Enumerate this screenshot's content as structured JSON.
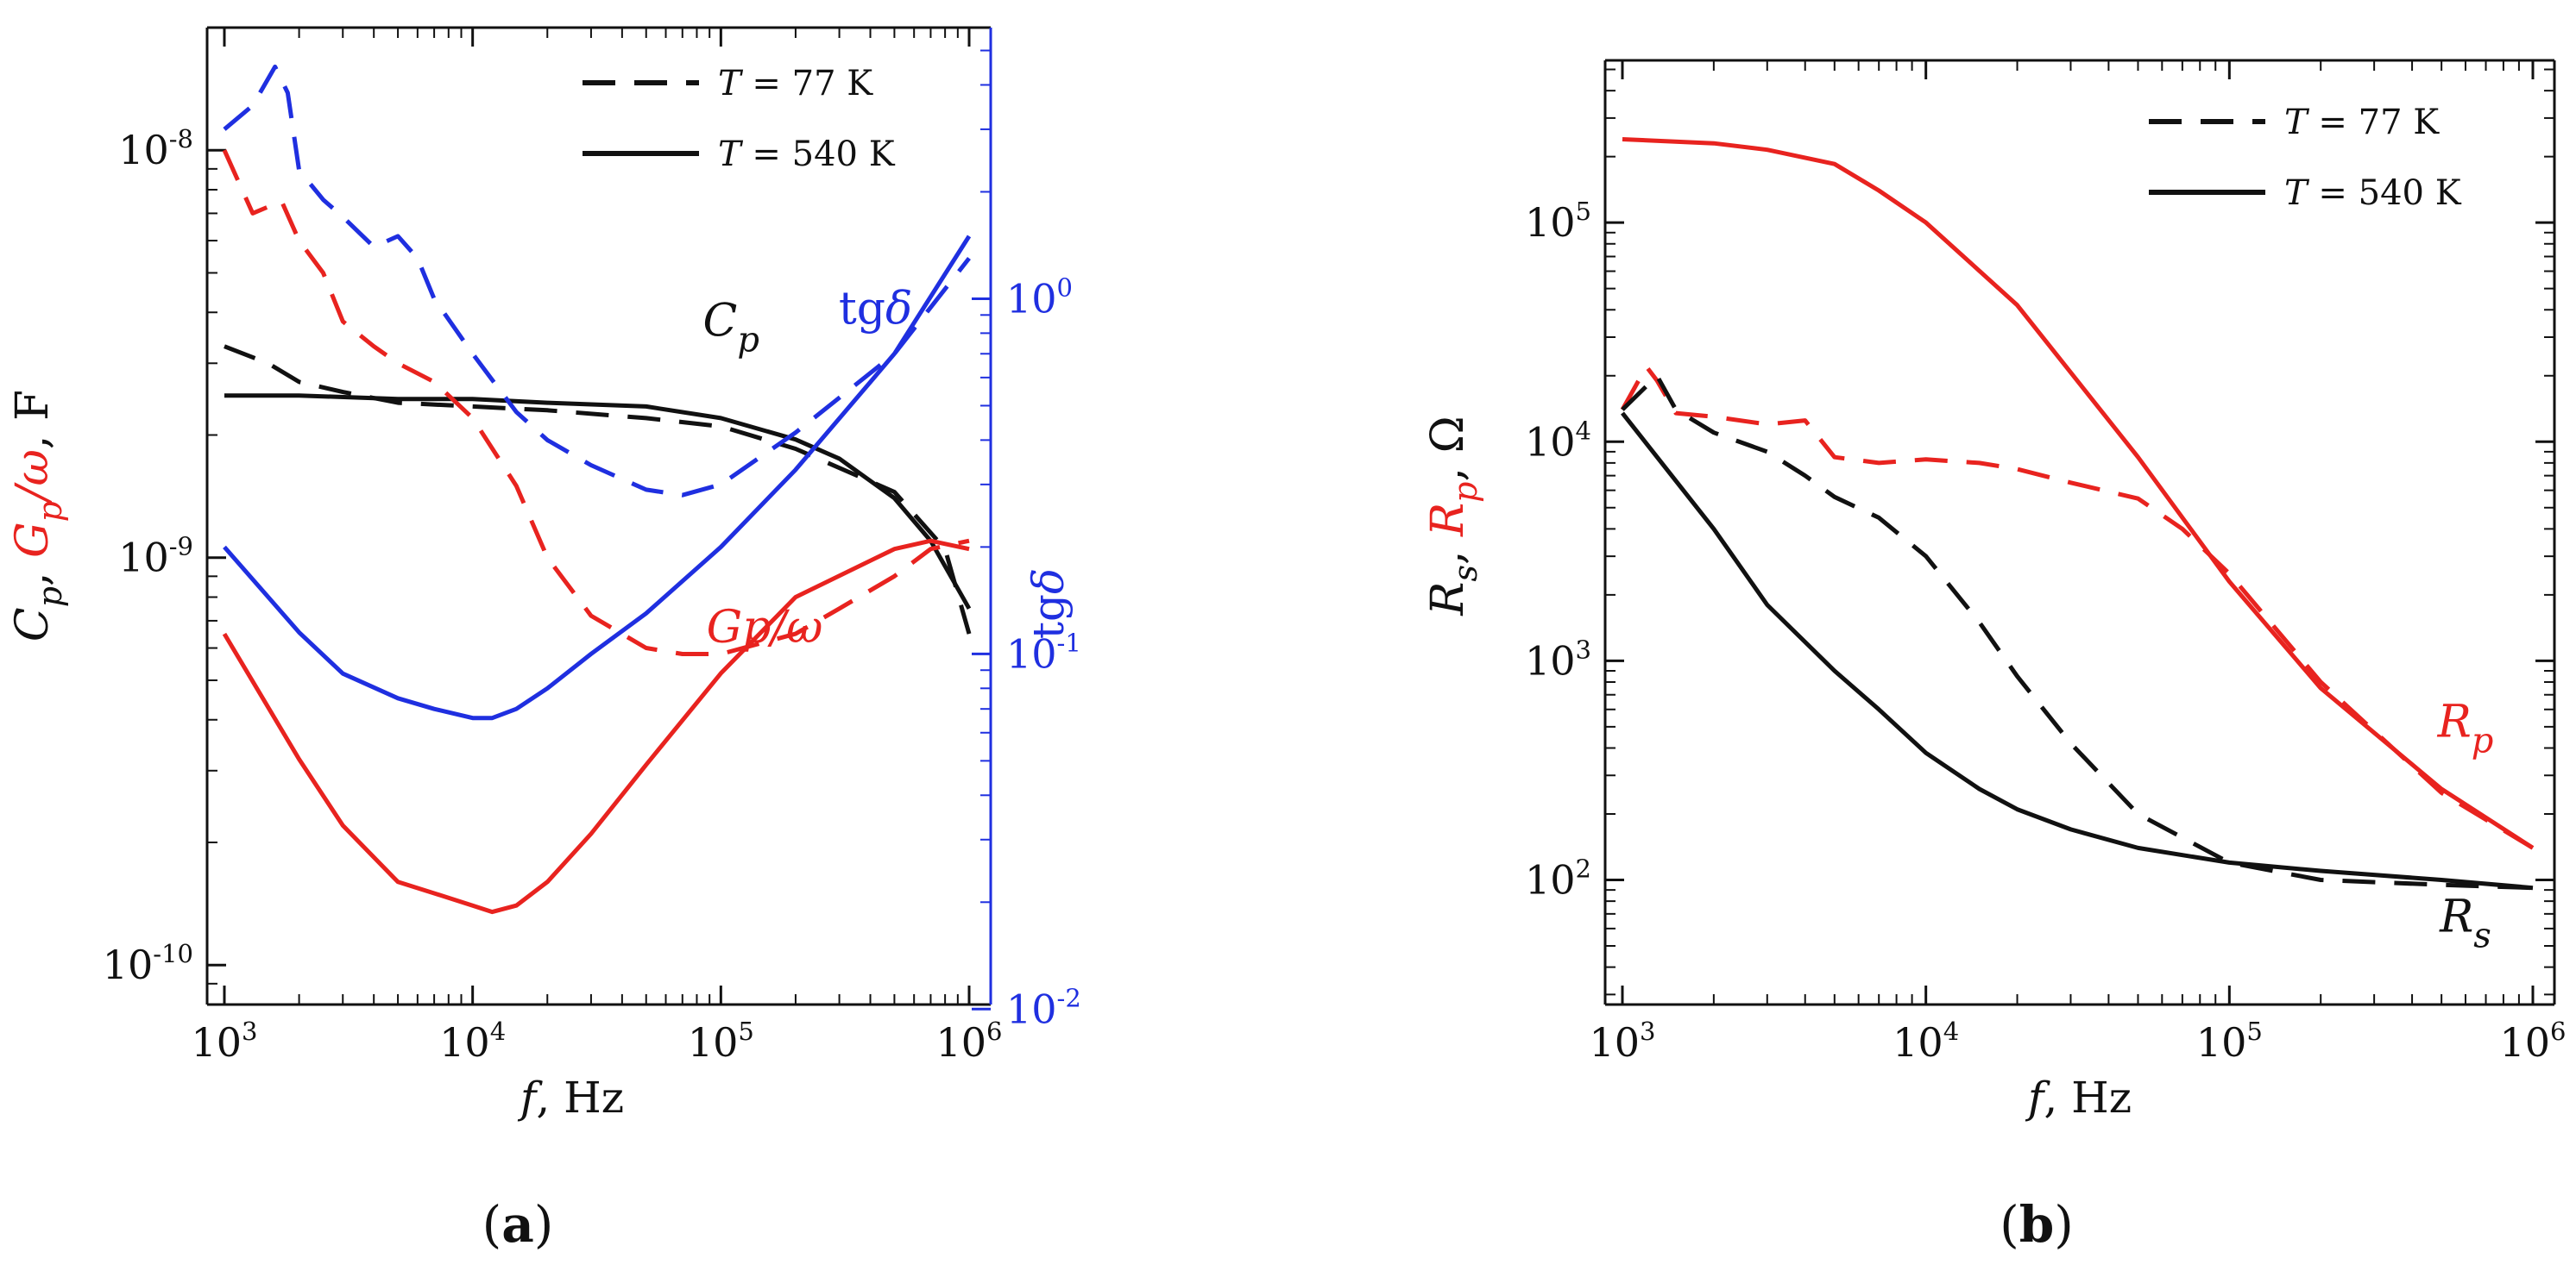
{
  "colors": {
    "black": "#111111",
    "red": "#e8231f",
    "blue": "#1f2fe0"
  },
  "chart_data": [
    {
      "type": "line",
      "panel_label": "(a)",
      "panel_letter": "a",
      "xlabel": "f, Hz",
      "xlabel_var": "f",
      "xlabel_unit": ", Hz",
      "xscale": "log",
      "xlim": [
        1000,
        1000000
      ],
      "x_ticks": [
        {
          "base": "10",
          "exp": "3",
          "v": 1000
        },
        {
          "base": "10",
          "exp": "4",
          "v": 10000
        },
        {
          "base": "10",
          "exp": "5",
          "v": 100000
        },
        {
          "base": "10",
          "exp": "6",
          "v": 1000000
        }
      ],
      "left_axis": {
        "label": "Cp, Gp/ω, F",
        "label_parts": [
          {
            "t": "C",
            "c": "black"
          },
          {
            "t": "p",
            "c": "black",
            "sub": true
          },
          {
            "t": ", ",
            "c": "black"
          },
          {
            "t": "G",
            "c": "red"
          },
          {
            "t": "p",
            "c": "red",
            "sub": true
          },
          {
            "t": "/ω",
            "c": "red"
          },
          {
            "t": ", F",
            "c": "black"
          }
        ],
        "scale": "log",
        "ylim": [
          8e-11,
          2e-08
        ],
        "ticks": [
          {
            "base": "10",
            "exp": "-10",
            "v": 1e-10
          },
          {
            "base": "10",
            "exp": "-9",
            "v": 1e-09
          },
          {
            "base": "10",
            "exp": "-8",
            "v": 1e-08
          }
        ]
      },
      "right_axis": {
        "label": "tgδ",
        "scale": "log",
        "ylim": [
          0.0103,
          5.8
        ],
        "ticks": [
          {
            "base": "10",
            "exp": "-2",
            "v": 0.01
          },
          {
            "base": "10",
            "exp": "-1",
            "v": 0.1
          },
          {
            "base": "10",
            "exp": "0",
            "v": 1
          }
        ]
      },
      "legend": {
        "position": "top-right",
        "entries": [
          {
            "var": "T",
            "text": " = 77 K",
            "label": "T = 77 K",
            "style": "dashed"
          },
          {
            "var": "T",
            "text": " = 540 K",
            "label": "T = 540 K",
            "style": "solid"
          }
        ]
      },
      "annotations": [
        {
          "text": "Cp",
          "main": "C",
          "sub": "p",
          "color": "black",
          "x": 110000,
          "y": 3.5e-09,
          "axis": "left"
        },
        {
          "text": "tgδ",
          "main": "tg",
          "sym": "δ",
          "color": "blue",
          "x": 420000,
          "y": 0.85,
          "axis": "right"
        },
        {
          "text": "Gp/ω",
          "main": "Gp/ω",
          "color": "red",
          "x": 150000,
          "y": 6.2e-10,
          "axis": "left"
        }
      ],
      "series": [
        {
          "name": "Cp, T = 540 K",
          "axis": "left",
          "color": "black",
          "style": "solid",
          "x": [
            1000,
            2000,
            5000,
            10000,
            20000,
            50000,
            100000,
            200000,
            300000,
            500000,
            700000,
            1000000
          ],
          "y": [
            2.5e-09,
            2.5e-09,
            2.45e-09,
            2.45e-09,
            2.4e-09,
            2.35e-09,
            2.2e-09,
            1.95e-09,
            1.75e-09,
            1.4e-09,
            1.1e-09,
            7.5e-10
          ]
        },
        {
          "name": "Cp, T = 77 K",
          "axis": "left",
          "color": "black",
          "style": "dashed",
          "x": [
            1000,
            1500,
            2000,
            3000,
            5000,
            10000,
            20000,
            50000,
            100000,
            200000,
            500000,
            800000,
            1000000
          ],
          "y": [
            3.3e-09,
            3e-09,
            2.7e-09,
            2.55e-09,
            2.4e-09,
            2.35e-09,
            2.3e-09,
            2.2e-09,
            2.1e-09,
            1.85e-09,
            1.45e-09,
            1.05e-09,
            6.5e-10
          ]
        },
        {
          "name": "Gp/ω, T = 540 K",
          "axis": "left",
          "color": "red",
          "style": "solid",
          "x": [
            1000,
            2000,
            3000,
            5000,
            7000,
            10000,
            12000,
            15000,
            20000,
            30000,
            50000,
            100000,
            200000,
            500000,
            700000,
            1000000
          ],
          "y": [
            6.5e-10,
            3.2e-10,
            2.2e-10,
            1.6e-10,
            1.5e-10,
            1.4e-10,
            1.35e-10,
            1.4e-10,
            1.6e-10,
            2.1e-10,
            3.1e-10,
            5.2e-10,
            8e-10,
            1.05e-09,
            1.1e-09,
            1.05e-09
          ]
        },
        {
          "name": "Gp/ω, T = 77 K",
          "axis": "left",
          "color": "red",
          "style": "dashed",
          "x": [
            1000,
            1300,
            1700,
            2000,
            2500,
            3000,
            4000,
            5000,
            7000,
            10000,
            15000,
            20000,
            30000,
            50000,
            70000,
            100000,
            200000,
            300000,
            500000,
            700000,
            1000000
          ],
          "y": [
            1e-08,
            7e-09,
            7.5e-09,
            6e-09,
            5e-09,
            3.8e-09,
            3.3e-09,
            3e-09,
            2.7e-09,
            2.2e-09,
            1.5e-09,
            1e-09,
            7.2e-10,
            6e-10,
            5.8e-10,
            5.8e-10,
            6.5e-10,
            7.5e-10,
            9e-10,
            1.05e-09,
            1.1e-09
          ]
        },
        {
          "name": "tgδ, T = 540 K",
          "axis": "right",
          "color": "blue",
          "style": "solid",
          "x": [
            1000,
            2000,
            3000,
            5000,
            7000,
            10000,
            12000,
            15000,
            20000,
            30000,
            50000,
            100000,
            200000,
            500000,
            1000000
          ],
          "y": [
            0.2,
            0.115,
            0.088,
            0.075,
            0.07,
            0.066,
            0.066,
            0.07,
            0.08,
            0.1,
            0.13,
            0.2,
            0.33,
            0.7,
            1.5
          ]
        },
        {
          "name": "tgδ, T = 77 K",
          "axis": "right",
          "color": "blue",
          "style": "dashed",
          "x": [
            1000,
            1300,
            1600,
            1800,
            2000,
            2500,
            3000,
            4000,
            5000,
            6000,
            7000,
            10000,
            15000,
            20000,
            30000,
            50000,
            70000,
            100000,
            200000,
            500000,
            1000000
          ],
          "y": [
            3.0,
            3.5,
            4.5,
            3.8,
            2.3,
            1.9,
            1.7,
            1.4,
            1.5,
            1.3,
            1.0,
            0.7,
            0.48,
            0.4,
            0.34,
            0.29,
            0.28,
            0.3,
            0.42,
            0.7,
            1.3
          ]
        }
      ]
    },
    {
      "type": "line",
      "panel_label": "(b)",
      "panel_letter": "b",
      "xlabel": "f, Hz",
      "xlabel_var": "f",
      "xlabel_unit": ", Hz",
      "xscale": "log",
      "xlim": [
        1000,
        1000000
      ],
      "x_ticks": [
        {
          "base": "10",
          "exp": "3",
          "v": 1000
        },
        {
          "base": "10",
          "exp": "4",
          "v": 10000
        },
        {
          "base": "10",
          "exp": "5",
          "v": 100000
        },
        {
          "base": "10",
          "exp": "6",
          "v": 1000000
        }
      ],
      "left_axis": {
        "label": "Rs, Rp, Ω",
        "label_parts": [
          {
            "t": "R",
            "c": "black"
          },
          {
            "t": "s",
            "c": "black",
            "sub": true
          },
          {
            "t": ", ",
            "c": "black"
          },
          {
            "t": "R",
            "c": "red"
          },
          {
            "t": "p",
            "c": "red",
            "sub": true
          },
          {
            "t": ", Ω",
            "c": "black"
          }
        ],
        "scale": "log",
        "ylim": [
          27,
          550000
        ],
        "ticks": [
          {
            "base": "10",
            "exp": "2",
            "v": 100
          },
          {
            "base": "10",
            "exp": "3",
            "v": 1000
          },
          {
            "base": "10",
            "exp": "4",
            "v": 10000
          },
          {
            "base": "10",
            "exp": "5",
            "v": 100000
          }
        ]
      },
      "legend": {
        "position": "top-right",
        "entries": [
          {
            "var": "T",
            "text": " = 77 K",
            "label": "T = 77 K",
            "style": "dashed"
          },
          {
            "var": "T",
            "text": " = 540 K",
            "label": "T = 540 K",
            "style": "solid"
          }
        ]
      },
      "annotations": [
        {
          "text": "Rp",
          "main": "R",
          "sub": "p",
          "color": "red",
          "x": 600000,
          "y": 450,
          "axis": "left"
        },
        {
          "text": "Rs",
          "main": "R",
          "sub": "s",
          "color": "black",
          "x": 600000,
          "y": 58,
          "axis": "left"
        }
      ],
      "series": [
        {
          "name": "Rp, T = 540 K",
          "axis": "left",
          "color": "red",
          "style": "solid",
          "x": [
            1000,
            2000,
            3000,
            5000,
            7000,
            10000,
            20000,
            50000,
            100000,
            200000,
            500000,
            1000000
          ],
          "y": [
            240000,
            230000,
            215000,
            185000,
            140000,
            100000,
            42000,
            8500,
            2300,
            750,
            260,
            140
          ]
        },
        {
          "name": "Rp, T = 77 K",
          "axis": "left",
          "color": "red",
          "style": "dashed",
          "x": [
            1000,
            1200,
            1300,
            1500,
            2000,
            3000,
            4000,
            5000,
            7000,
            10000,
            15000,
            20000,
            30000,
            50000,
            70000,
            100000,
            200000,
            500000,
            1000000
          ],
          "y": [
            14000,
            22000,
            19000,
            13500,
            13000,
            12000,
            12500,
            8500,
            8000,
            8300,
            8000,
            7500,
            6500,
            5500,
            4000,
            2500,
            800,
            250,
            140
          ]
        },
        {
          "name": "Rs, T = 77 K",
          "axis": "left",
          "color": "black",
          "style": "dashed",
          "x": [
            1000,
            1300,
            1500,
            2000,
            3000,
            4000,
            5000,
            7000,
            10000,
            15000,
            20000,
            30000,
            50000,
            100000,
            200000,
            500000,
            1000000
          ],
          "y": [
            14000,
            20000,
            14000,
            11000,
            9000,
            7000,
            5600,
            4500,
            3000,
            1500,
            850,
            420,
            200,
            120,
            100,
            95,
            92
          ]
        },
        {
          "name": "Rs, T = 540 K",
          "axis": "left",
          "color": "black",
          "style": "solid",
          "x": [
            1000,
            2000,
            3000,
            5000,
            7000,
            10000,
            15000,
            20000,
            30000,
            50000,
            100000,
            200000,
            500000,
            1000000
          ],
          "y": [
            13500,
            4000,
            1800,
            900,
            600,
            380,
            260,
            210,
            170,
            140,
            120,
            110,
            100,
            92
          ]
        }
      ]
    }
  ]
}
